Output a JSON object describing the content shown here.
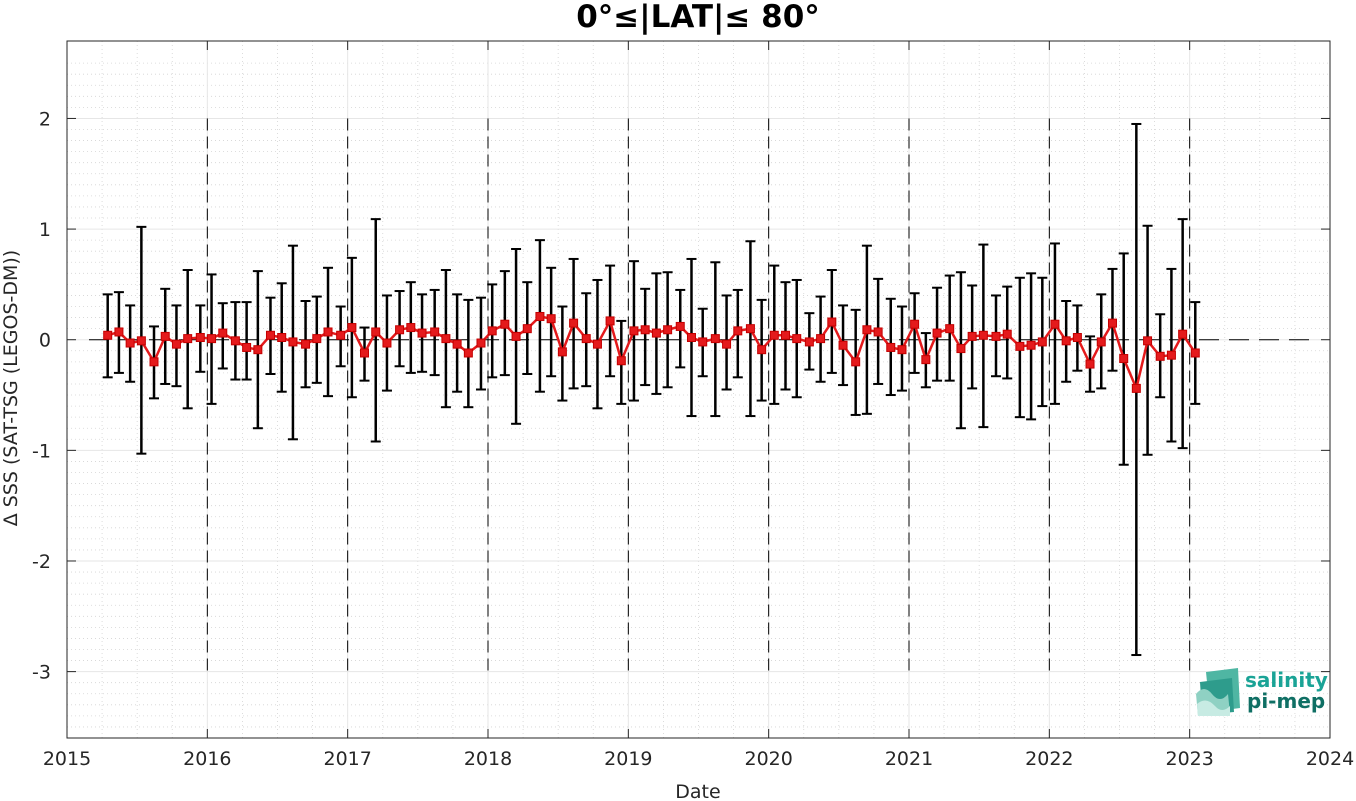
{
  "chart_data": {
    "type": "line",
    "title": "0°≤|LAT|≤ 80°",
    "xlabel": "Date",
    "ylabel": "Δ SSS (SAT-TSG (LEGOS-DM))",
    "xlim": [
      2015,
      2024
    ],
    "ylim": [
      -3.6,
      2.7
    ],
    "xticks": [
      2015,
      2016,
      2017,
      2018,
      2019,
      2020,
      2021,
      2022,
      2023,
      2024
    ],
    "xtick_labels": [
      "2015",
      "2016",
      "2017",
      "2018",
      "2019",
      "2020",
      "2021",
      "2022",
      "2023",
      "2024"
    ],
    "yticks": [
      2,
      1,
      0,
      -1,
      -2,
      -3
    ],
    "ytick_labels": [
      "2",
      "1",
      "0",
      "-1",
      "-2",
      "-3"
    ],
    "grid": true,
    "series": [
      {
        "color": "#e41a1c",
        "errorbar_color": "#000000",
        "x": [
          2015.29,
          2015.37,
          2015.45,
          2015.53,
          2015.62,
          2015.7,
          2015.78,
          2015.86,
          2015.95,
          2016.03,
          2016.11,
          2016.2,
          2016.28,
          2016.36,
          2016.45,
          2016.53,
          2016.61,
          2016.7,
          2016.78,
          2016.86,
          2016.95,
          2017.03,
          2017.12,
          2017.2,
          2017.28,
          2017.37,
          2017.45,
          2017.53,
          2017.62,
          2017.7,
          2017.78,
          2017.86,
          2017.95,
          2018.03,
          2018.12,
          2018.2,
          2018.28,
          2018.37,
          2018.45,
          2018.53,
          2018.61,
          2018.7,
          2018.78,
          2018.87,
          2018.95,
          2019.04,
          2019.12,
          2019.2,
          2019.28,
          2019.37,
          2019.45,
          2019.53,
          2019.62,
          2019.7,
          2019.78,
          2019.87,
          2019.95,
          2020.04,
          2020.12,
          2020.2,
          2020.29,
          2020.37,
          2020.45,
          2020.53,
          2020.62,
          2020.7,
          2020.78,
          2020.87,
          2020.95,
          2021.04,
          2021.12,
          2021.2,
          2021.29,
          2021.37,
          2021.45,
          2021.53,
          2021.62,
          2021.7,
          2021.79,
          2021.87,
          2021.95,
          2022.04,
          2022.12,
          2022.2,
          2022.29,
          2022.37,
          2022.45,
          2022.53,
          2022.62,
          2022.7,
          2022.79,
          2022.87,
          2022.95,
          2023.04
        ],
        "y": [
          0.04,
          0.07,
          -0.03,
          -0.01,
          -0.2,
          0.03,
          -0.04,
          0.01,
          0.02,
          0.01,
          0.06,
          -0.01,
          -0.07,
          -0.09,
          0.04,
          0.02,
          -0.02,
          -0.04,
          0.01,
          0.07,
          0.04,
          0.11,
          -0.12,
          0.07,
          -0.03,
          0.09,
          0.11,
          0.06,
          0.07,
          0.01,
          -0.04,
          -0.12,
          -0.03,
          0.08,
          0.14,
          0.03,
          0.1,
          0.21,
          0.19,
          -0.11,
          0.15,
          0.01,
          -0.04,
          0.17,
          -0.19,
          0.08,
          0.09,
          0.06,
          0.09,
          0.12,
          0.02,
          -0.02,
          0.01,
          -0.04,
          0.08,
          0.1,
          -0.09,
          0.04,
          0.04,
          0.01,
          -0.02,
          0.01,
          0.16,
          -0.05,
          -0.2,
          0.09,
          0.07,
          -0.07,
          -0.09,
          0.14,
          -0.18,
          0.06,
          0.1,
          -0.08,
          0.03,
          0.04,
          0.03,
          0.05,
          -0.06,
          -0.05,
          -0.02,
          0.14,
          -0.01,
          0.02,
          -0.22,
          -0.02,
          0.15,
          -0.17,
          -0.44,
          -0.01,
          -0.15,
          -0.14,
          0.05,
          -0.12
        ],
        "yerr_low": [
          -0.34,
          -0.3,
          -0.38,
          -1.03,
          -0.53,
          -0.4,
          -0.42,
          -0.62,
          -0.29,
          -0.58,
          -0.26,
          -0.36,
          -0.36,
          -0.8,
          -0.31,
          -0.47,
          -0.9,
          -0.43,
          -0.39,
          -0.51,
          -0.24,
          -0.52,
          -0.37,
          -0.92,
          -0.46,
          -0.24,
          -0.3,
          -0.29,
          -0.32,
          -0.61,
          -0.47,
          -0.61,
          -0.45,
          -0.34,
          -0.32,
          -0.76,
          -0.31,
          -0.47,
          -0.33,
          -0.55,
          -0.44,
          -0.42,
          -0.62,
          -0.33,
          -0.58,
          -0.55,
          -0.41,
          -0.49,
          -0.43,
          -0.25,
          -0.69,
          -0.33,
          -0.69,
          -0.45,
          -0.34,
          -0.69,
          -0.55,
          -0.58,
          -0.45,
          -0.52,
          -0.27,
          -0.38,
          -0.3,
          -0.41,
          -0.68,
          -0.67,
          -0.4,
          -0.5,
          -0.46,
          -0.3,
          -0.43,
          -0.37,
          -0.37,
          -0.8,
          -0.44,
          -0.79,
          -0.33,
          -0.35,
          -0.7,
          -0.72,
          -0.6,
          -0.58,
          -0.38,
          -0.28,
          -0.47,
          -0.44,
          -0.28,
          -1.13,
          -2.85,
          -1.04,
          -0.52,
          -0.92,
          -0.98,
          -0.58
        ],
        "yerr_high": [
          0.41,
          0.43,
          0.31,
          1.02,
          0.12,
          0.46,
          0.31,
          0.63,
          0.31,
          0.59,
          0.33,
          0.34,
          0.34,
          0.62,
          0.38,
          0.51,
          0.85,
          0.35,
          0.39,
          0.65,
          0.3,
          0.74,
          0.11,
          1.09,
          0.4,
          0.44,
          0.52,
          0.41,
          0.45,
          0.63,
          0.41,
          0.36,
          0.38,
          0.5,
          0.62,
          0.82,
          0.52,
          0.9,
          0.65,
          0.3,
          0.73,
          0.42,
          0.54,
          0.67,
          0.17,
          0.71,
          0.46,
          0.6,
          0.61,
          0.45,
          0.73,
          0.28,
          0.7,
          0.4,
          0.45,
          0.89,
          0.36,
          0.67,
          0.52,
          0.54,
          0.24,
          0.39,
          0.63,
          0.31,
          0.27,
          0.85,
          0.55,
          0.37,
          0.3,
          0.42,
          0.06,
          0.47,
          0.58,
          0.61,
          0.49,
          0.86,
          0.4,
          0.48,
          0.56,
          0.6,
          0.56,
          0.87,
          0.35,
          0.31,
          0.03,
          0.41,
          0.64,
          0.78,
          1.95,
          1.03,
          0.23,
          0.64,
          1.09,
          0.34
        ]
      }
    ],
    "reference_line_y": 0,
    "year_dividers": [
      2016,
      2017,
      2018,
      2019,
      2020,
      2021,
      2022,
      2023
    ]
  },
  "logo": {
    "line1": "salinity",
    "line2": "pi-mep",
    "color": "#1aa396"
  }
}
